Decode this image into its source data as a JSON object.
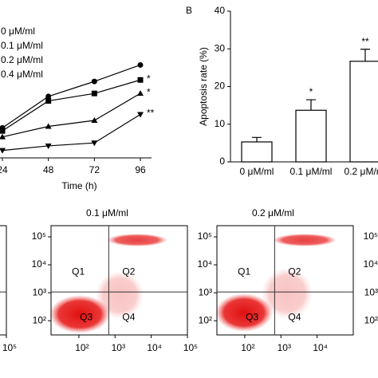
{
  "chart_data": [
    {
      "type": "line",
      "xlabel": "Time (h)",
      "x": [
        24,
        48,
        72,
        96
      ],
      "xlim": [
        24,
        96
      ],
      "xticks": [
        24,
        48,
        72,
        96
      ],
      "ylim": [
        0,
        1
      ],
      "series": [
        {
          "name": "0 μM/ml",
          "marker": "circle",
          "color": "#000000",
          "values": [
            0.2,
            0.41,
            0.51,
            0.62
          ]
        },
        {
          "name": "0.1 μM/ml",
          "marker": "square",
          "color": "#000000",
          "values": [
            0.18,
            0.38,
            0.43,
            0.52
          ],
          "mark_label": "*"
        },
        {
          "name": "0.2 μM/ml",
          "marker": "triangle-up",
          "color": "#000000",
          "values": [
            0.14,
            0.21,
            0.25,
            0.43
          ],
          "mark_label": "*"
        },
        {
          "name": "0.4 μM/ml",
          "marker": "triangle-down",
          "color": "#000000",
          "values": [
            0.05,
            0.08,
            0.1,
            0.29
          ],
          "mark_label": "**"
        }
      ]
    },
    {
      "type": "bar",
      "panel": "B",
      "ylabel": "Apoptosis rate (%)",
      "categories": [
        "0 μM/ml",
        "0.1 μM/ml",
        "0.2 μM/ml"
      ],
      "values": [
        5.3,
        13.7,
        26.7
      ],
      "errors": [
        1.2,
        2.8,
        3.2
      ],
      "significance": [
        null,
        "*",
        "**"
      ],
      "color": "#ffffff",
      "ylim": [
        0,
        40
      ],
      "yticks": [
        0,
        10,
        20,
        30,
        40
      ]
    },
    {
      "type": "flow",
      "log_scale": true,
      "xlim": [
        17,
        100000
      ],
      "ylim": [
        31,
        251000
      ],
      "gate": [
        670,
        1070
      ],
      "xticks": [
        {
          "value": 100000,
          "label": "10⁵"
        }
      ]
    },
    {
      "type": "flow",
      "title": "0.1 μM/ml",
      "log_scale": true,
      "xlim": [
        17,
        100000
      ],
      "ylim": [
        31,
        251000
      ],
      "gate": [
        670,
        1070
      ],
      "quadrants": [
        "Q1",
        "Q2",
        "Q3",
        "Q4"
      ],
      "xticks": [
        {
          "value": 100,
          "label": "10²"
        },
        {
          "value": 1000,
          "label": "10³"
        },
        {
          "value": 10000,
          "label": "10⁴"
        },
        {
          "value": 100000,
          "label": "10⁵"
        }
      ],
      "yticks": [
        {
          "value": 100,
          "label": "10²"
        },
        {
          "value": 1000,
          "label": "10³"
        },
        {
          "value": 10000,
          "label": "10⁴"
        },
        {
          "value": 100000,
          "label": "10⁵"
        }
      ]
    },
    {
      "type": "flow",
      "title": "0.2 μM/ml",
      "log_scale": true,
      "xlim": [
        17,
        100000
      ],
      "ylim": [
        31,
        251000
      ],
      "gate": [
        670,
        1070
      ],
      "quadrants": [
        "Q1",
        "Q2",
        "Q3",
        "Q4"
      ],
      "xticks": [
        {
          "value": 100,
          "label": "10²"
        },
        {
          "value": 1000,
          "label": "10³"
        },
        {
          "value": 10000,
          "label": "10⁴"
        }
      ],
      "yticks": [
        {
          "value": 100,
          "label": "10²"
        },
        {
          "value": 1000,
          "label": "10³"
        },
        {
          "value": 10000,
          "label": "10⁴"
        },
        {
          "value": 100000,
          "label": "10⁵"
        }
      ]
    },
    {
      "type": "flow",
      "log_scale": true,
      "xlim": [
        17,
        100000
      ],
      "ylim": [
        31,
        251000
      ],
      "gate": [
        670,
        1070
      ],
      "yticks": [
        {
          "value": 100,
          "label": "10²"
        },
        {
          "value": 1000,
          "label": "10³"
        },
        {
          "value": 10000,
          "label": "10⁴"
        },
        {
          "value": 100000,
          "label": "10⁵"
        }
      ]
    }
  ]
}
